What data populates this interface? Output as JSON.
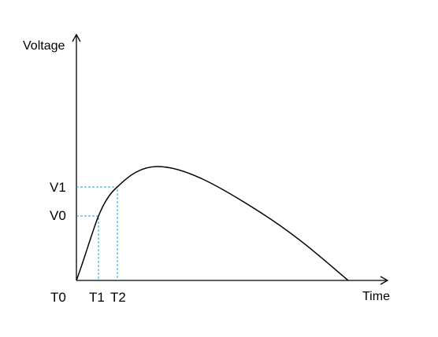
{
  "chart_data": {
    "type": "line",
    "title": "",
    "ylabel": "Voltage",
    "xlabel": "Time",
    "grid": false,
    "legend": "none",
    "x_markers": [
      "T0",
      "T1",
      "T2"
    ],
    "y_markers": [
      "V1",
      "V0"
    ],
    "series": [
      {
        "values": "rise-then-decay voltage curve from T0 back to zero",
        "color": "#000000"
      }
    ],
    "guide_color": "#1aa3d9",
    "axis_color": "#000000"
  }
}
